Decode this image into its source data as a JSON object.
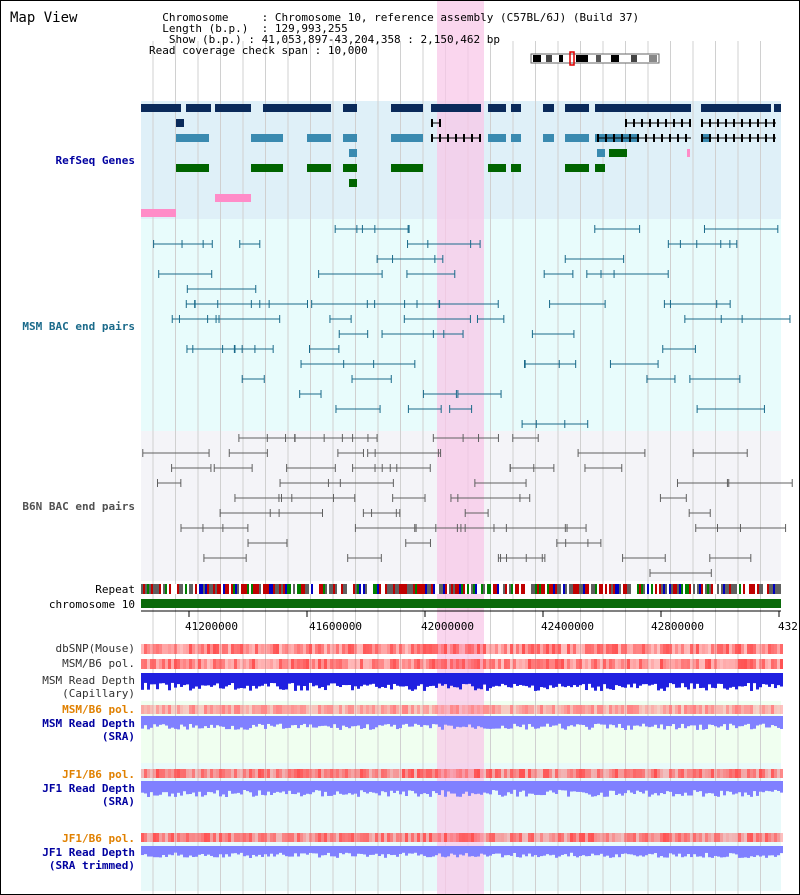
{
  "page": {
    "title": "Map View"
  },
  "info": {
    "chromosome_label": "Chromosome",
    "chromosome_value": "Chromosome 10, reference assembly (C57BL/6J) (Build 37)",
    "length_label": "Length (b.p.)",
    "length_value": "129,993,255",
    "show_label": "Show (b.p.)",
    "show_value": "41,053,897-43,204,358 : 2,150,462 bp",
    "coverage_label": "Read coverage check span",
    "coverage_value": "10,000"
  },
  "tracks": {
    "refseq": "RefSeq Genes",
    "msm_bac": "MSM BAC end pairs",
    "b6n_bac": "B6N BAC end pairs",
    "repeat": "Repeat",
    "chromosome": "chromosome 10",
    "dbsnp": "dbSNP(Mouse)",
    "msm_b6_pol": "MSM/B6 pol.",
    "msm_read_depth_cap_1": "MSM Read Depth",
    "msm_read_depth_cap_2": "(Capillary)",
    "msm_b6_pol_sra": "MSM/B6 pol.",
    "msm_read_depth_sra_1": "MSM Read Depth",
    "msm_read_depth_sra_2": "(SRA)",
    "jf1_b6_pol_1": "JF1/B6 pol.",
    "jf1_read_depth_sra_1": "JF1 Read Depth",
    "jf1_read_depth_sra_2": "(SRA)",
    "jf1_b6_pol_2": "JF1/B6 pol.",
    "jf1_read_depth_trim_1": "JF1 Read Depth",
    "jf1_read_depth_trim_2": "(SRA trimmed)"
  },
  "axis": {
    "ticks": [
      "41200000",
      "41600000",
      "42000000",
      "42400000",
      "42800000",
      "432"
    ]
  },
  "colors": {
    "refseq_bg": "#dff0f8",
    "msm_bg": "#e8fcfc",
    "b6n_bg": "#f4f4f8",
    "highlight": "#f8c8e8",
    "gene_dark": "#0a2a5a",
    "gene_mid": "#3a8ab0",
    "gene_green": "#006400",
    "msm_pair": "#1a6a8a",
    "b6n_pair": "#606060",
    "chrom_bar": "#0a6a0a",
    "pol_red": "#ff5050",
    "depth_blue": "#2020e0",
    "depth_light": "#8080ff",
    "label_blue": "#0000a0",
    "label_orange": "#e08000"
  }
}
